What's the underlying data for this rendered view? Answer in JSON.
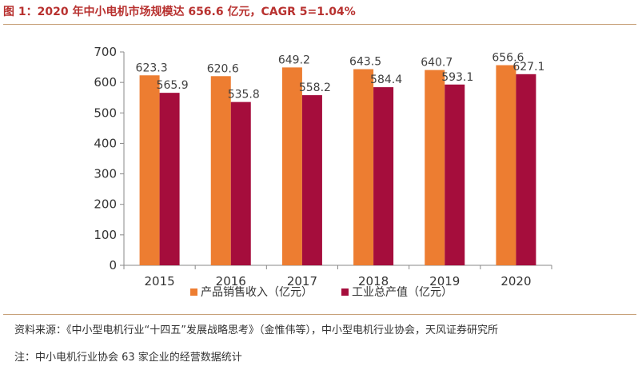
{
  "title": "图 1：2020 年中小电机市场规模达 656.6 亿元，CAGR 5=1.04%",
  "source": "资料来源：《中小型电机行业“十四五”发展战略思考》（金惟伟等），中小型电机行业协会，天风证券研究所",
  "note": "注：中小电机行业协会 63 家企业的经营数据统计",
  "chart_data": {
    "type": "bar",
    "categories": [
      "2015",
      "2016",
      "2017",
      "2018",
      "2019",
      "2020"
    ],
    "series": [
      {
        "name": "产品销售收入（亿元）",
        "color": "#ed7d31",
        "values": [
          623.3,
          620.6,
          649.2,
          643.5,
          640.7,
          656.6
        ]
      },
      {
        "name": "工业总产值（亿元）",
        "color": "#a50d3c",
        "values": [
          565.9,
          535.8,
          558.2,
          584.4,
          593.1,
          627.1
        ]
      }
    ],
    "value_labels": [
      [
        "623.3",
        "620.6",
        "649.2",
        "643.5",
        "640.7",
        "656.6"
      ],
      [
        "565.9",
        "535.8",
        "558.2",
        "584.4",
        "593.1",
        "627.1"
      ]
    ],
    "yticks": [
      "0",
      "100",
      "200",
      "300",
      "400",
      "500",
      "600",
      "700"
    ],
    "ylim": [
      0,
      700
    ],
    "grid": false,
    "legend_position": "bottom"
  }
}
